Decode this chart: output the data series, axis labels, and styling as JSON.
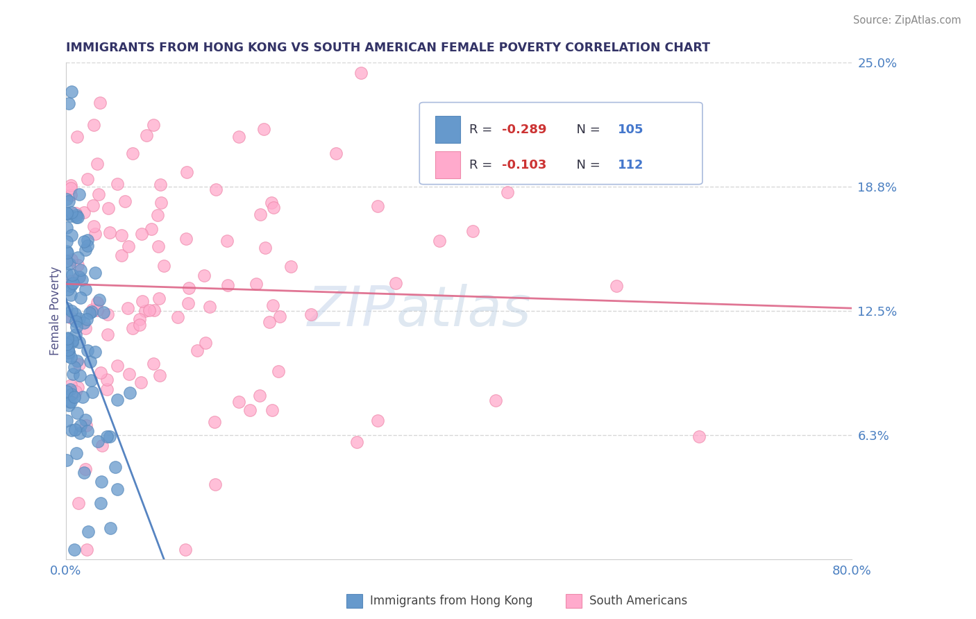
{
  "title": "IMMIGRANTS FROM HONG KONG VS SOUTH AMERICAN FEMALE POVERTY CORRELATION CHART",
  "source_text": "Source: ZipAtlas.com",
  "ylabel": "Female Poverty",
  "x_min": 0.0,
  "x_max": 0.8,
  "y_min": 0.0,
  "y_max": 0.25,
  "y_tick_values": [
    0.0,
    0.0625,
    0.125,
    0.1875,
    0.25
  ],
  "y_tick_labels": [
    "",
    "6.3%",
    "12.5%",
    "18.8%",
    "25.0%"
  ],
  "x_tick_labels": [
    "0.0%",
    "80.0%"
  ],
  "R_blue": -0.289,
  "N_blue": 105,
  "R_pink": -0.103,
  "N_pink": 112,
  "blue_color": "#6699cc",
  "blue_edge_color": "#5588bb",
  "pink_color": "#ffaacc",
  "pink_edge_color": "#ee88aa",
  "trend_blue_color": "#4477bb",
  "trend_pink_color": "#dd6688",
  "legend_blue_label": "Immigrants from Hong Kong",
  "legend_pink_label": "South Americans",
  "watermark": "ZIPAtlas",
  "background_color": "#ffffff",
  "grid_color": "#cccccc",
  "title_color": "#333366",
  "source_color": "#888888",
  "axis_label_color": "#555588",
  "tick_color": "#4a7fc1",
  "legend_box_color": "#f0f4ff",
  "legend_border_color": "#aabbdd"
}
